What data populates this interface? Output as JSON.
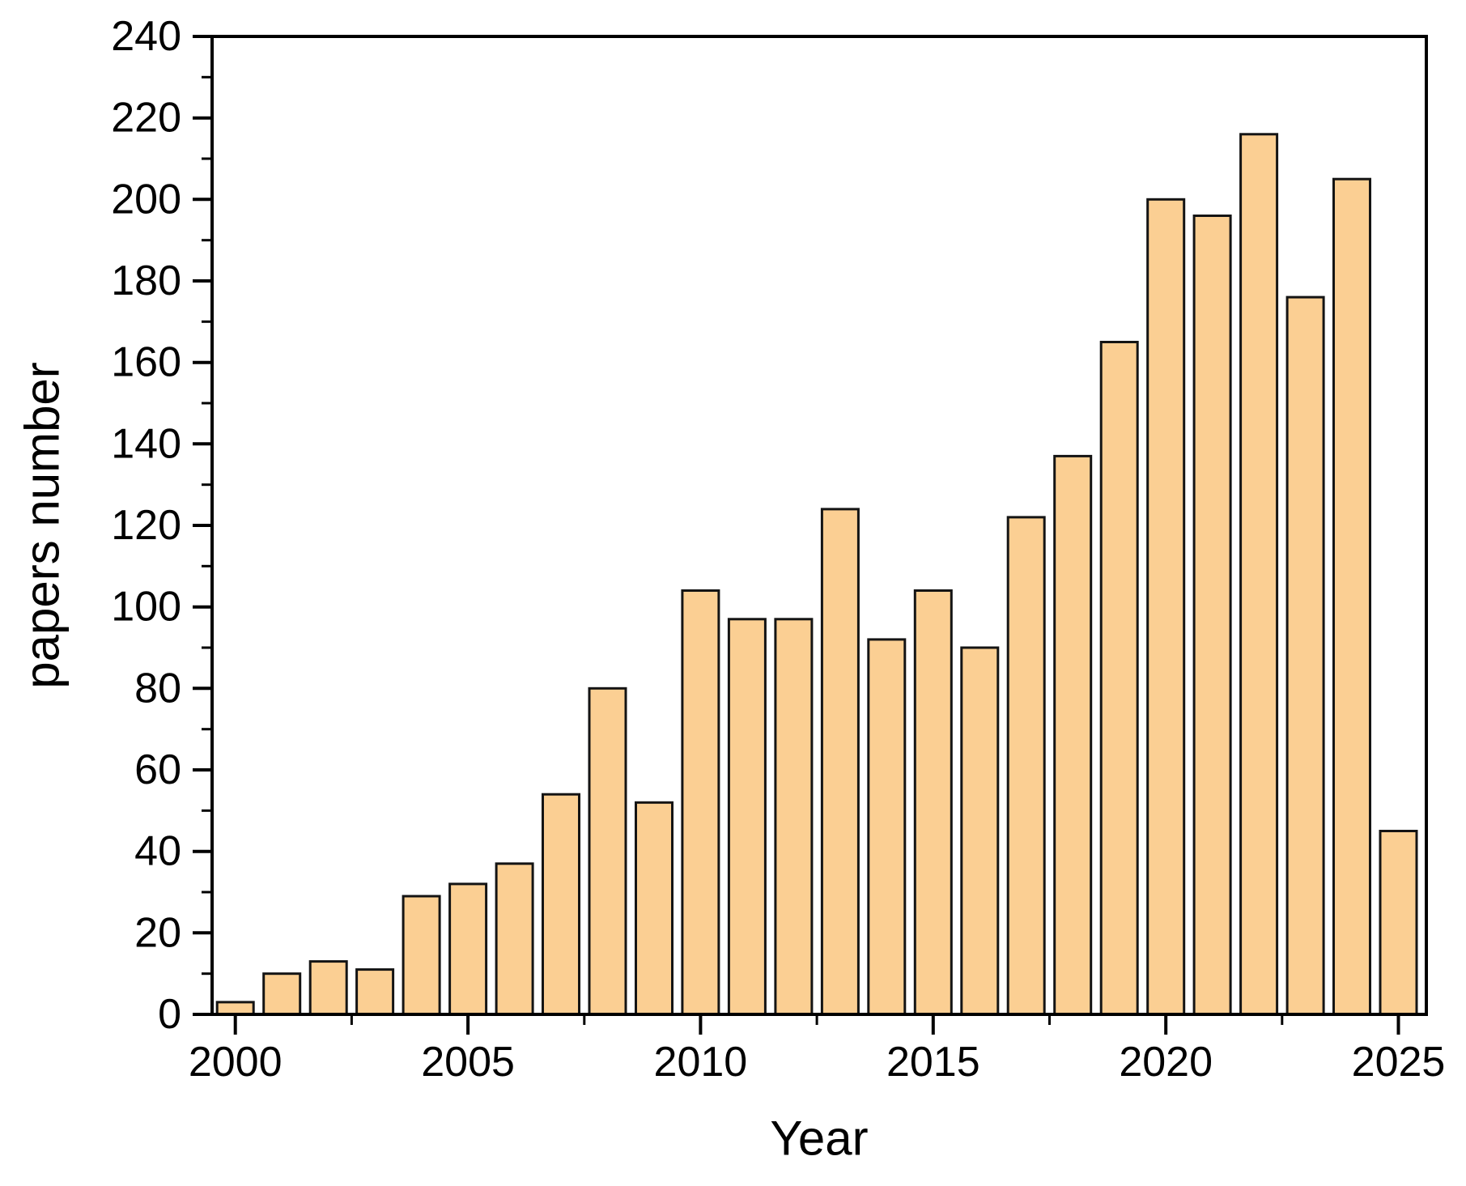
{
  "chart_data": {
    "type": "bar",
    "title": "",
    "xlabel": "Year",
    "ylabel": "papers number",
    "categories": [
      2000,
      2001,
      2002,
      2003,
      2004,
      2005,
      2006,
      2007,
      2008,
      2009,
      2010,
      2011,
      2012,
      2013,
      2014,
      2015,
      2016,
      2017,
      2018,
      2019,
      2020,
      2021,
      2022,
      2023,
      2024,
      2025
    ],
    "values": [
      3,
      10,
      13,
      11,
      29,
      32,
      37,
      54,
      80,
      52,
      104,
      97,
      97,
      124,
      92,
      104,
      90,
      122,
      137,
      165,
      200,
      196,
      216,
      176,
      205,
      45
    ],
    "xlim": [
      1999.5,
      2025.6
    ],
    "ylim": [
      0,
      240
    ],
    "x_major_ticks": [
      2000,
      2005,
      2010,
      2015,
      2020,
      2025
    ],
    "x_major_tick_labels": [
      "2000",
      "2005",
      "2010",
      "2015",
      "2020",
      "2025"
    ],
    "x_minor_ticks": [
      2002.5,
      2007.5,
      2012.5,
      2017.5,
      2022.5
    ],
    "y_major_step": 20,
    "y_minor_step": 10,
    "y_major_tick_labels": [
      "0",
      "20",
      "40",
      "60",
      "80",
      "100",
      "120",
      "140",
      "160",
      "180",
      "200",
      "220",
      "240"
    ],
    "grid": "off",
    "legend": "none",
    "bar_fill": "#FBCF93",
    "bar_stroke": "#141414",
    "axis_color": "#000000",
    "background": "#ffffff"
  }
}
